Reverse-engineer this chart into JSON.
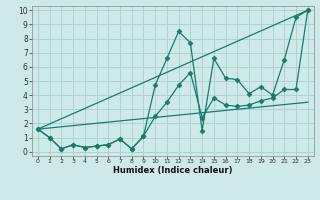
{
  "xlabel": "Humidex (Indice chaleur)",
  "background_color": "#ceeae8",
  "grid_color": "#aacfcc",
  "line_color": "#1a7a6e",
  "xlim": [
    -0.5,
    23.5
  ],
  "ylim": [
    -0.3,
    10.3
  ],
  "xticks": [
    0,
    1,
    2,
    3,
    4,
    5,
    6,
    7,
    8,
    9,
    10,
    11,
    12,
    13,
    14,
    15,
    16,
    17,
    18,
    19,
    20,
    21,
    22,
    23
  ],
  "yticks": [
    0,
    1,
    2,
    3,
    4,
    5,
    6,
    7,
    8,
    9,
    10
  ],
  "series": [
    {
      "x": [
        0,
        1,
        2,
        3,
        4,
        5,
        6,
        7,
        8,
        9,
        10,
        11,
        12,
        13,
        14,
        15,
        16,
        17,
        18,
        19,
        20,
        21,
        22,
        23
      ],
      "y": [
        1.6,
        1.0,
        0.2,
        0.5,
        0.3,
        0.4,
        0.5,
        0.9,
        0.2,
        1.1,
        4.7,
        6.6,
        8.5,
        7.7,
        1.5,
        6.6,
        5.2,
        5.1,
        4.1,
        4.6,
        4.0,
        6.5,
        9.5,
        10.0
      ],
      "marker": "D",
      "markersize": 2.5
    },
    {
      "x": [
        0,
        1,
        2,
        3,
        4,
        5,
        6,
        7,
        8,
        9,
        10,
        11,
        12,
        13,
        14,
        15,
        16,
        17,
        18,
        19,
        20,
        21,
        22,
        23
      ],
      "y": [
        1.6,
        1.0,
        0.2,
        0.5,
        0.3,
        0.4,
        0.5,
        0.9,
        0.2,
        1.1,
        2.5,
        3.5,
        4.7,
        5.6,
        2.4,
        3.8,
        3.3,
        3.2,
        3.3,
        3.6,
        3.8,
        4.4,
        4.4,
        10.0
      ],
      "marker": "D",
      "markersize": 2.5
    },
    {
      "x": [
        0,
        23
      ],
      "y": [
        1.6,
        10.0
      ],
      "marker": null,
      "markersize": 0
    },
    {
      "x": [
        0,
        23
      ],
      "y": [
        1.6,
        3.5
      ],
      "marker": null,
      "markersize": 0
    }
  ]
}
